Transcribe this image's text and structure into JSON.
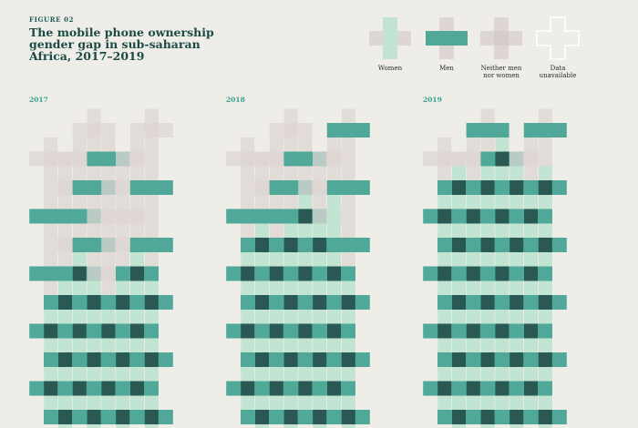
{
  "figure_label": "FIGURE 02",
  "title": "The mobile phone ownership gender gap in sub-saharan Africa, 2017–2019",
  "legend": [
    {
      "key": "women",
      "label": "Women"
    },
    {
      "key": "men",
      "label": "Men"
    },
    {
      "key": "neither",
      "label": "Neither men nor women"
    },
    {
      "key": "unavailable",
      "label": "Data unavailable"
    }
  ],
  "colors": {
    "women": "#c1e4d3",
    "men": "#4fa898",
    "both": "#2a5852",
    "neither": "#ddd6d3",
    "neither_overlap": "#d4cdca",
    "background": "#eeede8",
    "accent": "#3a9f8d",
    "title": "#1d4a44"
  },
  "panels": [
    {
      "year": "2017",
      "rows": [
        "    X   X",
        " X X M X",
        "  X M X M",
        " M M X X",
        "  X M X M",
        " M B X B",
        "  B B B B",
        " B B B B",
        "  B B B B",
        " B B B B",
        "  B B B B"
      ]
    },
    {
      "year": "2018",
      "rows": [
        "    X   M",
        " X X M X",
        "  X M X M",
        " M M B W",
        "  B B B M",
        " B B B B",
        "  B B B B",
        " B B B B",
        "  B B B B",
        " B B B B",
        "  B B B B"
      ]
    },
    {
      "year": "2019",
      "rows": [
        "    M   M",
        " X X B X",
        "  B B B B",
        " B B B B",
        "  B B B B",
        " B B B B",
        "  B B B B",
        " B B B B",
        "  B B B B",
        " B B B B",
        "  B B B B"
      ]
    }
  ]
}
